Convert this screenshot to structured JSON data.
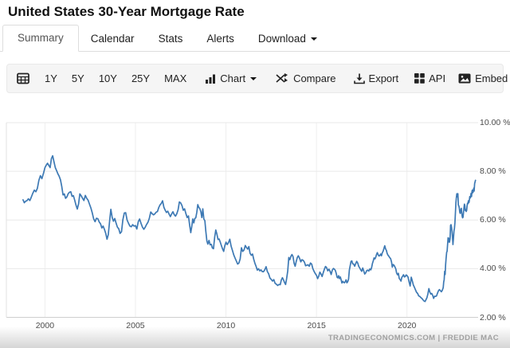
{
  "header": {
    "title": "United States 30-Year Mortgage Rate"
  },
  "tabs": {
    "items": [
      {
        "label": "Summary",
        "active": true
      },
      {
        "label": "Calendar",
        "active": false
      },
      {
        "label": "Stats",
        "active": false
      },
      {
        "label": "Alerts",
        "active": false
      },
      {
        "label": "Download",
        "active": false,
        "has_caret": true
      }
    ]
  },
  "toolbar": {
    "calendar_icon": "calendar-grid-icon",
    "ranges": [
      {
        "label": "1Y"
      },
      {
        "label": "5Y"
      },
      {
        "label": "10Y"
      },
      {
        "label": "25Y"
      },
      {
        "label": "MAX"
      }
    ],
    "chart_menu": {
      "label": "Chart",
      "icon": "bar-chart-icon",
      "has_caret": true
    },
    "actions": [
      {
        "label": "Compare",
        "icon": "compare-icon"
      },
      {
        "label": "Export",
        "icon": "export-download-icon"
      },
      {
        "label": "API",
        "icon": "api-grid-icon"
      },
      {
        "label": "Embed",
        "icon": "embed-image-icon"
      }
    ]
  },
  "footer": {
    "attribution": "TRADINGECONOMICS.COM | FREDDIE MAC"
  },
  "chart_data": {
    "type": "line",
    "title": "United States 30-Year Mortgage Rate",
    "unit": "%",
    "line_color": "#3d79b4",
    "grid": true,
    "x_range": [
      1998.79,
      2023.93
    ],
    "y_range": [
      2,
      10
    ],
    "yticks": [
      {
        "value": 10,
        "label": "10.00 %"
      },
      {
        "value": 8,
        "label": "8.00 %"
      },
      {
        "value": 6,
        "label": "6.00 %"
      },
      {
        "value": 4,
        "label": "4.00 %"
      },
      {
        "value": 2,
        "label": "2.00 %"
      }
    ],
    "xticks": [
      {
        "value": 2000,
        "label": "2000"
      },
      {
        "value": 2005,
        "label": "2005"
      },
      {
        "value": 2010,
        "label": "2010"
      },
      {
        "value": 2015,
        "label": "2015"
      },
      {
        "value": 2020,
        "label": "2020"
      }
    ],
    "source": "FREDDIE MAC",
    "series": [
      {
        "name": "30-Year Mortgage Rate",
        "segments": [
          {
            "from": 1998.79,
            "to": 1999.0,
            "values": [
              6.83,
              6.71,
              6.77
            ]
          },
          {
            "from": 1999.0,
            "to": 2000.0,
            "values": [
              6.79,
              6.87,
              6.8,
              6.94,
              7.1,
              7.23,
              7.16,
              7.3,
              7.63,
              7.82,
              7.7,
              7.91
            ]
          },
          {
            "from": 2000.0,
            "to": 2001.0,
            "values": [
              8.15,
              8.25,
              8.33,
              8.24,
              8.15,
              8.52,
              8.64,
              8.4,
              8.15,
              8.03,
              7.9,
              7.8,
              7.65,
              7.38
            ]
          },
          {
            "from": 2001.0,
            "to": 2002.0,
            "values": [
              7.03,
              7.07,
              6.89,
              6.95,
              7.08,
              7.14,
              7.16,
              6.97,
              7.0,
              6.82,
              6.62,
              6.45,
              6.66,
              7.07
            ]
          },
          {
            "from": 2002.0,
            "to": 2003.0,
            "values": [
              7.0,
              6.89,
              6.8,
              7.01,
              6.89,
              6.81,
              6.65,
              6.49,
              6.29,
              6.05,
              5.93,
              6.07,
              6.05
            ]
          },
          {
            "from": 2003.0,
            "to": 2004.0,
            "values": [
              5.92,
              5.84,
              5.67,
              5.75,
              5.62,
              5.45,
              5.21,
              5.4,
              5.94,
              6.44,
              6.1,
              5.95,
              6.06,
              5.88
            ]
          },
          {
            "from": 2004.0,
            "to": 2005.0,
            "values": [
              5.71,
              5.64,
              5.45,
              5.52,
              6.01,
              6.29,
              6.3,
              6.0,
              5.87,
              5.75,
              5.72,
              5.81,
              5.75
            ]
          },
          {
            "from": 2005.0,
            "to": 2006.0,
            "values": [
              5.77,
              5.63,
              5.93,
              6.04,
              5.86,
              5.71,
              5.62,
              5.7,
              5.82,
              5.91,
              6.07,
              6.33,
              6.26
            ]
          },
          {
            "from": 2006.0,
            "to": 2007.0,
            "values": [
              6.21,
              6.25,
              6.32,
              6.35,
              6.51,
              6.62,
              6.68,
              6.79,
              6.52,
              6.4,
              6.31,
              6.36,
              6.24,
              6.14
            ]
          },
          {
            "from": 2007.0,
            "to": 2008.0,
            "values": [
              6.25,
              6.34,
              6.22,
              6.16,
              6.26,
              6.42,
              6.74,
              6.7,
              6.59,
              6.4,
              6.46,
              6.26,
              6.1,
              6.17
            ]
          },
          {
            "from": 2008.0,
            "to": 2009.0,
            "values": [
              5.76,
              5.48,
              5.72,
              6.04,
              5.88,
              6.06,
              6.09,
              6.32,
              6.63,
              6.52,
              6.47,
              6.35,
              6.1,
              6.46,
              6.04,
              5.97,
              5.53,
              5.14
            ]
          },
          {
            "from": 2009.0,
            "to": 2010.0,
            "values": [
              5.01,
              5.16,
              4.98,
              5.0,
              4.85,
              4.82,
              5.29,
              5.59,
              5.42,
              5.2,
              5.22,
              5.08,
              4.94,
              4.81,
              4.71,
              4.94
            ]
          },
          {
            "from": 2010.0,
            "to": 2011.0,
            "values": [
              5.09,
              4.99,
              5.08,
              5.21,
              4.93,
              4.75,
              4.57,
              4.44,
              4.32,
              4.19,
              4.23,
              4.4,
              4.86,
              4.71
            ]
          },
          {
            "from": 2011.0,
            "to": 2012.0,
            "values": [
              4.77,
              4.95,
              4.87,
              4.8,
              4.91,
              4.63,
              4.55,
              4.6,
              4.39,
              4.22,
              4.09,
              3.94,
              4.0,
              3.91,
              3.95
            ]
          },
          {
            "from": 2012.0,
            "to": 2013.0,
            "values": [
              3.88,
              3.87,
              3.95,
              4.08,
              3.88,
              3.79,
              3.62,
              3.56,
              3.49,
              3.55,
              3.4,
              3.36,
              3.31,
              3.35
            ]
          },
          {
            "from": 2013.0,
            "to": 2014.0,
            "values": [
              3.34,
              3.53,
              3.63,
              3.54,
              3.43,
              3.35,
              3.59,
              3.91,
              4.46,
              4.37,
              4.51,
              4.58,
              4.5,
              4.22,
              4.1,
              4.29,
              4.46
            ]
          },
          {
            "from": 2014.0,
            "to": 2015.0,
            "values": [
              4.53,
              4.43,
              4.28,
              4.37,
              4.34,
              4.27,
              4.12,
              4.14,
              4.16,
              4.1,
              4.23,
              4.19,
              4.0,
              3.89,
              3.8
            ]
          },
          {
            "from": 2015.0,
            "to": 2016.0,
            "values": [
              3.73,
              3.59,
              3.69,
              3.86,
              3.78,
              3.68,
              3.84,
              3.98,
              4.09,
              4.04,
              3.91,
              3.98,
              3.89,
              3.76,
              3.94,
              4.01
            ]
          },
          {
            "from": 2016.0,
            "to": 2017.0,
            "values": [
              3.97,
              3.92,
              3.81,
              3.65,
              3.62,
              3.71,
              3.59,
              3.66,
              3.54,
              3.41,
              3.48,
              3.44,
              3.42,
              3.47,
              3.54,
              3.42,
              3.47,
              3.57,
              3.94,
              4.13,
              4.3,
              4.32
            ]
          },
          {
            "from": 2017.0,
            "to": 2018.0,
            "values": [
              4.2,
              4.19,
              4.1,
              4.21,
              4.3,
              4.23,
              4.1,
              4.03,
              3.95,
              3.89,
              4.03,
              3.9,
              3.78,
              3.83,
              3.92,
              3.94,
              3.9,
              3.99
            ]
          },
          {
            "from": 2018.0,
            "to": 2019.0,
            "values": [
              3.95,
              4.04,
              4.22,
              4.32,
              4.44,
              4.4,
              4.47,
              4.58,
              4.66,
              4.57,
              4.52,
              4.54,
              4.6,
              4.53,
              4.65,
              4.72,
              4.83,
              4.94,
              4.81,
              4.75,
              4.62,
              4.55
            ]
          },
          {
            "from": 2019.0,
            "to": 2020.0,
            "values": [
              4.51,
              4.45,
              4.41,
              4.28,
              4.06,
              4.17,
              4.14,
              4.07,
              3.99,
              3.82,
              3.75,
              3.81,
              3.6,
              3.55,
              3.49,
              3.64,
              3.69,
              3.75,
              3.66,
              3.68,
              3.74
            ]
          },
          {
            "from": 2020.0,
            "to": 2021.0,
            "values": [
              3.72,
              3.65,
              3.45,
              3.29,
              3.65,
              3.5,
              3.33,
              3.23,
              3.13,
              3.03,
              2.98,
              2.88,
              2.86,
              2.81,
              2.78,
              2.72,
              2.67
            ]
          },
          {
            "from": 2021.0,
            "to": 2022.0,
            "values": [
              2.65,
              2.73,
              2.81,
              2.97,
              3.18,
              3.04,
              2.96,
              2.98,
              2.9,
              2.78,
              2.87,
              2.86,
              2.88,
              2.99,
              3.09,
              3.14,
              3.1,
              3.05,
              3.11
            ]
          },
          {
            "from": 2022.0,
            "to": 2023.0,
            "values": [
              3.22,
              3.45,
              3.55,
              3.89,
              3.76,
              4.16,
              4.42,
              4.67,
              4.72,
              5.0,
              5.27,
              5.1,
              5.25,
              5.09,
              5.23,
              5.78,
              5.81,
              5.7,
              5.54,
              5.3,
              4.99,
              5.22,
              5.55,
              5.66,
              5.89,
              6.29,
              6.7,
              6.92,
              7.08,
              6.95,
              7.08,
              6.61,
              6.58,
              6.49,
              6.31,
              6.27,
              6.42
            ]
          },
          {
            "from": 2023.0,
            "to": 2023.81,
            "values": [
              6.48,
              6.33,
              6.15,
              6.09,
              6.12,
              6.32,
              6.5,
              6.65,
              6.6,
              6.39,
              6.43,
              6.35,
              6.39,
              6.57,
              6.69,
              6.67,
              6.79,
              6.71,
              6.78,
              6.96,
              6.9,
              6.96,
              7.09,
              6.96,
              7.18,
              7.23,
              7.12,
              7.18,
              7.31,
              7.19,
              7.49,
              7.57,
              7.63
            ]
          }
        ]
      }
    ]
  }
}
